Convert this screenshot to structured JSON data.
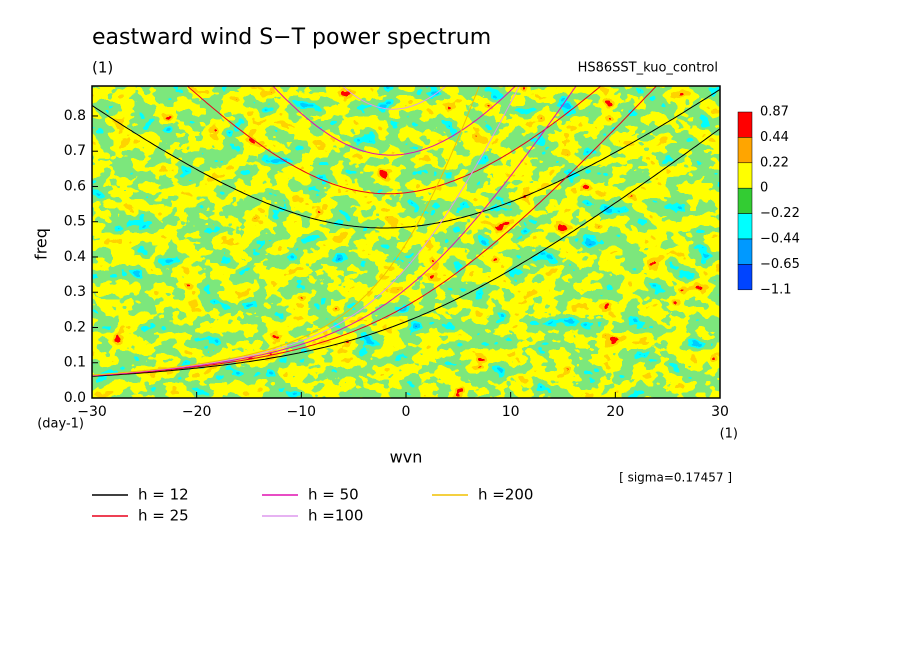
{
  "chart_data": {
    "type": "contour",
    "title": "eastward wind S−T power spectrum",
    "subtitle": "(1)",
    "experiment": "HS86SST_kuo_control",
    "xlabel": "wvn",
    "xunit": "(1)",
    "ylabel": "freq",
    "yunit": "(day-1)",
    "annotation": "[ sigma=0.17457 ]",
    "xlim": [
      -30,
      30
    ],
    "xticks": [
      {
        "value": -30,
        "label": "−30"
      },
      {
        "value": -20,
        "label": "−20"
      },
      {
        "value": -10,
        "label": "−10"
      },
      0,
      10,
      20,
      30
    ],
    "ylim": [
      0,
      0.885
    ],
    "yticks": [
      {
        "value": 0,
        "label": "0.0"
      },
      0.1,
      0.2,
      0.3,
      0.4,
      0.5,
      0.6,
      0.7,
      0.8
    ],
    "colorbar": {
      "levels": [
        0.87,
        0.44,
        0.22,
        0,
        {
          "value": -0.22,
          "label": "−0.22"
        },
        {
          "value": -0.44,
          "label": "−0.44"
        },
        {
          "value": -0.65,
          "label": "−0.65"
        },
        {
          "value": -1.1,
          "label": "−1.1"
        }
      ],
      "colors": [
        "#ff0000",
        "#ffa500",
        "#ffff00",
        "#33cc33",
        "#00ffff",
        "#0099ff",
        "#0044ff"
      ]
    },
    "series": [
      {
        "name": "h = 12",
        "h": 12,
        "color": "#000000"
      },
      {
        "name": "h = 25",
        "h": 25,
        "color": "#e8001c"
      },
      {
        "name": "h = 50",
        "h": 50,
        "color": "#e010b0"
      },
      {
        "name": "h =100",
        "h": 100,
        "color": "#dd99ee"
      },
      {
        "name": "h =200",
        "h": 200,
        "color": "#f0c000"
      }
    ]
  }
}
